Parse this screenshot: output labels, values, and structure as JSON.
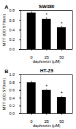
{
  "chart_data": [
    {
      "type": "bar",
      "panel_label": "A",
      "title": "SW480",
      "x_label": "daphnetin (μM)",
      "y_label": "MTT (OD 570nm)",
      "categories": [
        "0",
        "25",
        "50"
      ],
      "values": [
        0.75,
        0.62,
        0.45
      ],
      "errors": [
        0.03,
        0.04,
        0.03
      ],
      "color": "#000000",
      "ylim": [
        0,
        0.8
      ],
      "yticks": [
        {
          "value": 0,
          "label": "0.0"
        },
        {
          "value": 0.2,
          "label": "0.2"
        },
        {
          "value": 0.4,
          "label": "0.4"
        },
        {
          "value": 0.6,
          "label": "0.6"
        },
        {
          "value": 0.8,
          "label": "0.8"
        }
      ],
      "annotations": [
        {
          "x": "25",
          "text": "*"
        },
        {
          "x": "50",
          "text": "*"
        }
      ]
    },
    {
      "type": "bar",
      "panel_label": "B",
      "title": "HT-29",
      "x_label": "daphnetin (μM)",
      "y_label": "MTT (OD 570nm)",
      "categories": [
        "0",
        "25",
        "50"
      ],
      "values": [
        0.8,
        0.6,
        0.42
      ],
      "errors": [
        0.03,
        0.03,
        0.03
      ],
      "color": "#000000",
      "ylim": [
        0,
        1.0
      ],
      "yticks": [
        {
          "value": 0,
          "label": "0.0"
        },
        {
          "value": 0.2,
          "label": "0.2"
        },
        {
          "value": 0.4,
          "label": "0.4"
        },
        {
          "value": 0.6,
          "label": "0.6"
        },
        {
          "value": 0.8,
          "label": "0.8"
        },
        {
          "value": 1.0,
          "label": "1.0"
        }
      ],
      "annotations": [
        {
          "x": "25",
          "text": "*"
        },
        {
          "x": "50",
          "text": "*"
        }
      ]
    }
  ]
}
